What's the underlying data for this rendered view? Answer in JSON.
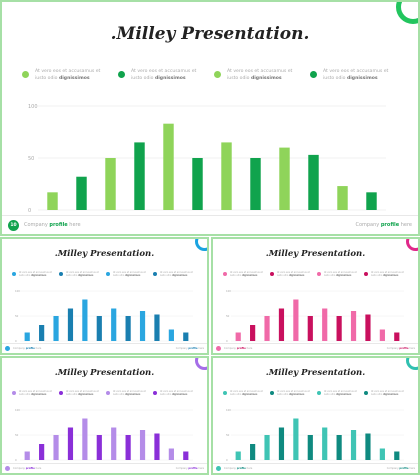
{
  "slides": [
    {
      "title": ".Milley Presentation.",
      "legend": [
        {
          "line1": "At vero eos et accusamus et",
          "line2_prefix": "iusto odio ",
          "line2_bold": "dignissimos"
        },
        {
          "line1": "At vero eos et accusamus et",
          "line2_prefix": "iusto odio ",
          "line2_bold": "dignissimos"
        },
        {
          "line1": "At vero eos et accusamus et",
          "line2_prefix": "iusto odio ",
          "line2_bold": "dignissimos"
        },
        {
          "line1": "At vero eos et accusamus et",
          "line2_prefix": "iusto odio ",
          "line2_bold": "dignissimos"
        }
      ],
      "footer": {
        "page": "10",
        "left_prefix": "Company ",
        "left_bold": "profile",
        "left_suffix": " here",
        "right_prefix": "Company ",
        "right_bold": "profile",
        "right_suffix": " here"
      },
      "colors": {
        "light": "#8fd45a",
        "dark": "#10a34d",
        "ring": "#22c55e",
        "border": "#a6e0a6"
      }
    },
    {
      "title": ".Milley Presentation.",
      "legend": [
        {
          "line1": "At vero eos et accusamus et",
          "line2_prefix": "iusto odio ",
          "line2_bold": "dignissimos"
        },
        {
          "line1": "At vero eos et accusamus et",
          "line2_prefix": "iusto odio ",
          "line2_bold": "dignissimos"
        },
        {
          "line1": "At vero eos et accusamus et",
          "line2_prefix": "iusto odio ",
          "line2_bold": "dignissimos"
        },
        {
          "line1": "At vero eos et accusamus et",
          "line2_prefix": "iusto odio ",
          "line2_bold": "dignissimos"
        }
      ],
      "footer": {
        "page": "",
        "left_prefix": "Company ",
        "left_bold": "profile",
        "left_suffix": " here",
        "right_prefix": "Company ",
        "right_bold": "profile",
        "right_suffix": " here"
      },
      "colors": {
        "light": "#2aa6e0",
        "dark": "#1a7fb0",
        "ring": "#1aa3e0",
        "border": "#a6e0a6"
      }
    },
    {
      "title": ".Milley Presentation.",
      "legend": [
        {
          "line1": "At vero eos et accusamus et",
          "line2_prefix": "iusto odio ",
          "line2_bold": "dignissimos"
        },
        {
          "line1": "At vero eos et accusamus et",
          "line2_prefix": "iusto odio ",
          "line2_bold": "dignissimos"
        },
        {
          "line1": "At vero eos et accusamus et",
          "line2_prefix": "iusto odio ",
          "line2_bold": "dignissimos"
        },
        {
          "line1": "At vero eos et accusamus et",
          "line2_prefix": "iusto odio ",
          "line2_bold": "dignissimos"
        }
      ],
      "footer": {
        "page": "",
        "left_prefix": "Company ",
        "left_bold": "profile",
        "left_suffix": " here",
        "right_prefix": "Company ",
        "right_bold": "profile",
        "right_suffix": " here"
      },
      "colors": {
        "light": "#f06aa8",
        "dark": "#c9105e",
        "ring": "#e0288a",
        "border": "#a6e0a6"
      }
    },
    {
      "title": ".Milley Presentation.",
      "legend": [
        {
          "line1": "At vero eos et accusamus et",
          "line2_prefix": "iusto odio ",
          "line2_bold": "dignissimos"
        },
        {
          "line1": "At vero eos et accusamus et",
          "line2_prefix": "iusto odio ",
          "line2_bold": "dignissimos"
        },
        {
          "line1": "At vero eos et accusamus et",
          "line2_prefix": "iusto odio ",
          "line2_bold": "dignissimos"
        },
        {
          "line1": "At vero eos et accusamus et",
          "line2_prefix": "iusto odio ",
          "line2_bold": "dignissimos"
        }
      ],
      "footer": {
        "page": "",
        "left_prefix": "Company ",
        "left_bold": "profile",
        "left_suffix": " here",
        "right_prefix": "Company ",
        "right_bold": "profile",
        "right_suffix": " here"
      },
      "colors": {
        "light": "#b48ce8",
        "dark": "#8a2fd8",
        "ring": "#a56ee8",
        "border": "#a6e0a6"
      }
    },
    {
      "title": ".Milley Presentation.",
      "legend": [
        {
          "line1": "At vero eos et accusamus et",
          "line2_prefix": "iusto odio ",
          "line2_bold": "dignissimos"
        },
        {
          "line1": "At vero eos et accusamus et",
          "line2_prefix": "iusto odio ",
          "line2_bold": "dignissimos"
        },
        {
          "line1": "At vero eos et accusamus et",
          "line2_prefix": "iusto odio ",
          "line2_bold": "dignissimos"
        },
        {
          "line1": "At vero eos et accusamus et",
          "line2_prefix": "iusto odio ",
          "line2_bold": "dignissimos"
        }
      ],
      "footer": {
        "page": "",
        "left_prefix": "Company ",
        "left_bold": "profile",
        "left_suffix": " here",
        "right_prefix": "Company ",
        "right_bold": "profile",
        "right_suffix": " here"
      },
      "colors": {
        "light": "#3fc4b4",
        "dark": "#0f8a80",
        "ring": "#30c0b0",
        "border": "#a6e0a6"
      }
    }
  ],
  "chart_data": {
    "type": "bar",
    "ylim": [
      0,
      100
    ],
    "yticks": [
      "100",
      "50",
      "0"
    ],
    "values": [
      17,
      32,
      50,
      65,
      83,
      50,
      65,
      50,
      60,
      53,
      23,
      17
    ],
    "shade": [
      "light",
      "dark",
      "light",
      "dark",
      "light",
      "dark",
      "light",
      "dark",
      "light",
      "dark",
      "light",
      "dark"
    ]
  }
}
